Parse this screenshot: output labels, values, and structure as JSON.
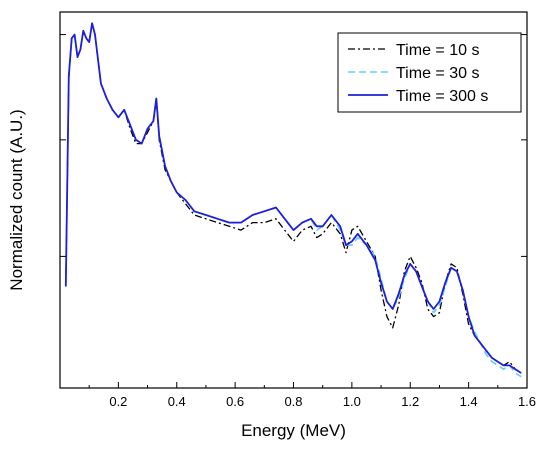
{
  "chart_data": {
    "type": "line",
    "title": "",
    "xlabel": "Energy (MeV)",
    "ylabel": "Normalized count (A.U.)",
    "xlim": [
      0.0,
      1.6
    ],
    "ylim": [
      0.0,
      1.0
    ],
    "y_scale": "log",
    "y_tick_labels_shown": false,
    "x_ticks": [
      0.2,
      0.4,
      0.6,
      0.8,
      1.0,
      1.2,
      1.4,
      1.6
    ],
    "x_tick_labels": [
      "0.2",
      "0.4",
      "0.6",
      "0.8",
      "1.0",
      "1.2",
      "1.4",
      "1.6"
    ],
    "legend": {
      "position": "top-right",
      "framed": true
    },
    "x": [
      0.02,
      0.03,
      0.04,
      0.05,
      0.06,
      0.07,
      0.08,
      0.09,
      0.1,
      0.11,
      0.12,
      0.14,
      0.16,
      0.18,
      0.2,
      0.22,
      0.24,
      0.26,
      0.28,
      0.3,
      0.32,
      0.33,
      0.34,
      0.36,
      0.38,
      0.4,
      0.43,
      0.46,
      0.5,
      0.54,
      0.58,
      0.62,
      0.66,
      0.7,
      0.74,
      0.77,
      0.8,
      0.83,
      0.86,
      0.88,
      0.9,
      0.93,
      0.96,
      0.98,
      1.0,
      1.02,
      1.05,
      1.08,
      1.1,
      1.12,
      1.14,
      1.16,
      1.18,
      1.2,
      1.22,
      1.24,
      1.26,
      1.28,
      1.3,
      1.32,
      1.34,
      1.36,
      1.38,
      1.4,
      1.42,
      1.44,
      1.46,
      1.48,
      1.5,
      1.52,
      1.54,
      1.56,
      1.58
    ],
    "series": [
      {
        "name": "Time = 10 s",
        "color": "#000000",
        "dash": "dash-dot",
        "values": [
          0.27,
          0.82,
          0.93,
          0.94,
          0.88,
          0.9,
          0.95,
          0.93,
          0.92,
          0.97,
          0.94,
          0.81,
          0.77,
          0.74,
          0.72,
          0.74,
          0.69,
          0.65,
          0.65,
          0.68,
          0.71,
          0.77,
          0.66,
          0.58,
          0.55,
          0.52,
          0.49,
          0.46,
          0.45,
          0.44,
          0.43,
          0.42,
          0.44,
          0.44,
          0.45,
          0.42,
          0.39,
          0.42,
          0.43,
          0.4,
          0.41,
          0.44,
          0.41,
          0.36,
          0.42,
          0.43,
          0.39,
          0.35,
          0.26,
          0.19,
          0.16,
          0.22,
          0.31,
          0.35,
          0.32,
          0.28,
          0.21,
          0.19,
          0.2,
          0.28,
          0.33,
          0.32,
          0.25,
          0.17,
          0.14,
          0.12,
          0.1,
          0.08,
          0.07,
          0.06,
          0.07,
          0.05,
          0.04
        ]
      },
      {
        "name": "Time = 30 s",
        "color": "#66ccff",
        "dash": "dash",
        "values": [
          0.27,
          0.83,
          0.93,
          0.94,
          0.88,
          0.9,
          0.95,
          0.93,
          0.92,
          0.97,
          0.94,
          0.81,
          0.77,
          0.74,
          0.72,
          0.74,
          0.7,
          0.66,
          0.65,
          0.69,
          0.71,
          0.77,
          0.67,
          0.59,
          0.55,
          0.52,
          0.5,
          0.47,
          0.46,
          0.45,
          0.44,
          0.44,
          0.46,
          0.47,
          0.48,
          0.45,
          0.42,
          0.44,
          0.45,
          0.42,
          0.43,
          0.46,
          0.42,
          0.38,
          0.38,
          0.4,
          0.38,
          0.35,
          0.29,
          0.23,
          0.21,
          0.24,
          0.29,
          0.33,
          0.31,
          0.27,
          0.23,
          0.2,
          0.22,
          0.27,
          0.32,
          0.31,
          0.26,
          0.19,
          0.15,
          0.12,
          0.09,
          0.07,
          0.06,
          0.05,
          0.06,
          0.04,
          0.03
        ]
      },
      {
        "name": "Time = 300 s",
        "color": "#1f1fd6",
        "dash": "solid",
        "values": [
          0.27,
          0.83,
          0.93,
          0.94,
          0.88,
          0.9,
          0.95,
          0.93,
          0.92,
          0.97,
          0.94,
          0.81,
          0.77,
          0.74,
          0.72,
          0.74,
          0.7,
          0.66,
          0.65,
          0.69,
          0.71,
          0.77,
          0.67,
          0.59,
          0.55,
          0.52,
          0.5,
          0.47,
          0.46,
          0.45,
          0.44,
          0.44,
          0.46,
          0.47,
          0.48,
          0.45,
          0.42,
          0.44,
          0.45,
          0.43,
          0.43,
          0.46,
          0.43,
          0.38,
          0.39,
          0.41,
          0.38,
          0.34,
          0.28,
          0.23,
          0.21,
          0.25,
          0.3,
          0.33,
          0.31,
          0.27,
          0.23,
          0.21,
          0.23,
          0.28,
          0.32,
          0.31,
          0.26,
          0.19,
          0.14,
          0.12,
          0.1,
          0.08,
          0.07,
          0.06,
          0.06,
          0.05,
          0.04
        ]
      }
    ]
  }
}
